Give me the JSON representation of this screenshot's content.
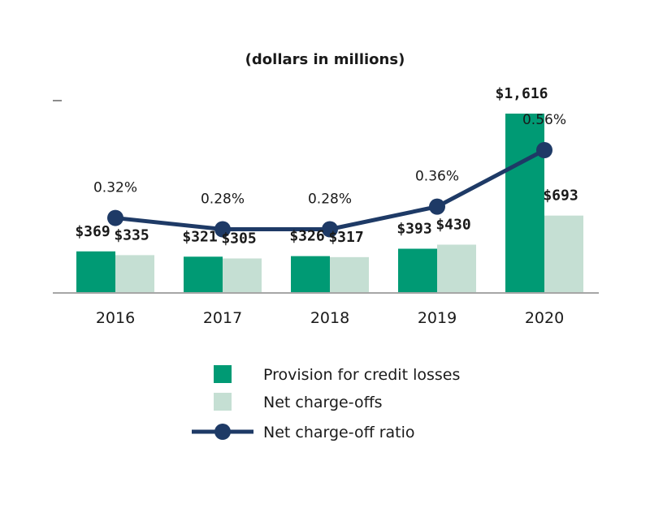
{
  "chart_data": {
    "type": "bar",
    "subtitle": "(dollars in millions)",
    "categories": [
      "2016",
      "2017",
      "2018",
      "2019",
      "2020"
    ],
    "series": [
      {
        "name": "Provision for credit losses",
        "kind": "bar",
        "color": "#009a74",
        "values": [
          369,
          321,
          326,
          393,
          1616
        ],
        "labels": [
          "$369",
          "$321",
          "$326",
          "$393",
          "$1,616"
        ]
      },
      {
        "name": "Net charge-offs",
        "kind": "bar",
        "color": "#c5dfd3",
        "values": [
          335,
          305,
          317,
          430,
          693
        ],
        "labels": [
          "$335",
          "$305",
          "$317",
          "$430",
          "$693"
        ]
      },
      {
        "name": "Net charge-off ratio",
        "kind": "line",
        "color": "#1e3a66",
        "values": [
          0.32,
          0.28,
          0.28,
          0.36,
          0.56
        ],
        "labels": [
          "0.32%",
          "0.28%",
          "0.28%",
          "0.36%",
          "0.56%"
        ]
      }
    ],
    "ylim": [
      0,
      1616
    ],
    "y2lim": [
      0,
      0.56
    ],
    "grid": false,
    "legend": "bottom"
  }
}
